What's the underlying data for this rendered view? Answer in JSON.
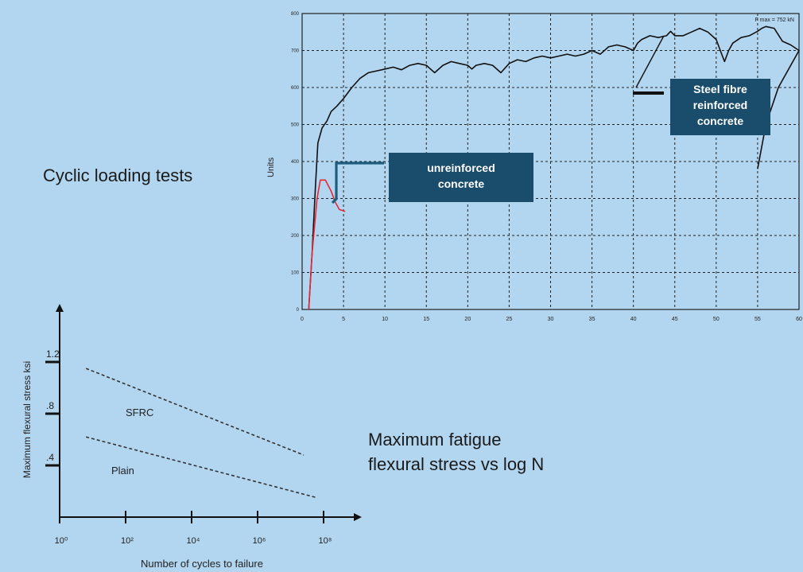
{
  "slide": {
    "title": "Cyclic loading tests",
    "caption_line1": "Maximum fatigue",
    "caption_line2": "flexural stress vs log N"
  },
  "colors": {
    "background": "#b3d6f0",
    "plot_bg": "#b3d6f0",
    "label_box": "#1a4d6b",
    "sfrc_line": "#111111",
    "plain_line": "#e8283a"
  },
  "chart_data": [
    {
      "type": "line",
      "ylabel": "Units",
      "xlabel": "",
      "xlim": [
        0,
        60
      ],
      "ylim": [
        0,
        800
      ],
      "grid": true,
      "x_ticks": [
        0,
        5,
        10,
        15,
        20,
        25,
        30,
        35,
        40,
        45,
        50,
        55,
        60
      ],
      "y_ticks": [
        0,
        100,
        200,
        300,
        400,
        500,
        600,
        700,
        800
      ],
      "annotation": "F max = 752 kN",
      "labels": [
        {
          "text_lines": [
            "Steel fibre",
            "reinforced",
            "concrete"
          ],
          "series": "sfrc"
        },
        {
          "text_lines": [
            "unreinforced",
            "concrete"
          ],
          "series": "plain"
        }
      ],
      "series": [
        {
          "id": "sfrc",
          "color": "#111111",
          "points": [
            [
              0.8,
              0
            ],
            [
              1.2,
              150
            ],
            [
              1.6,
              330
            ],
            [
              1.9,
              450
            ],
            [
              2.4,
              490
            ],
            [
              3.0,
              510
            ],
            [
              3.5,
              535
            ],
            [
              4.2,
              550
            ],
            [
              5.0,
              570
            ],
            [
              6.0,
              600
            ],
            [
              7.0,
              625
            ],
            [
              8.0,
              640
            ],
            [
              9.0,
              645
            ],
            [
              10.0,
              650
            ],
            [
              11.0,
              655
            ],
            [
              12.0,
              648
            ],
            [
              13.0,
              660
            ],
            [
              14.0,
              665
            ],
            [
              15.0,
              660
            ],
            [
              15.5,
              650
            ],
            [
              16.0,
              640
            ],
            [
              17.0,
              660
            ],
            [
              18.0,
              670
            ],
            [
              19.0,
              665
            ],
            [
              20.0,
              660
            ],
            [
              20.5,
              650
            ],
            [
              21.0,
              660
            ],
            [
              22.0,
              665
            ],
            [
              23.0,
              660
            ],
            [
              24.0,
              640
            ],
            [
              25.0,
              665
            ],
            [
              26.0,
              675
            ],
            [
              27.0,
              670
            ],
            [
              28.0,
              680
            ],
            [
              29.0,
              685
            ],
            [
              30.0,
              680
            ],
            [
              31.0,
              685
            ],
            [
              32.0,
              690
            ],
            [
              33.0,
              685
            ],
            [
              34.0,
              690
            ],
            [
              35.0,
              700
            ],
            [
              36.0,
              690
            ],
            [
              37.0,
              710
            ],
            [
              38.0,
              715
            ],
            [
              39.0,
              710
            ],
            [
              40.0,
              700
            ],
            [
              40.5,
              720
            ],
            [
              41.0,
              730
            ],
            [
              42.0,
              740
            ],
            [
              43.0,
              735
            ],
            [
              44.0,
              740
            ],
            [
              44.5,
              752
            ],
            [
              45.0,
              740
            ],
            [
              46.0,
              740
            ],
            [
              47.0,
              750
            ],
            [
              48.0,
              760
            ],
            [
              49.0,
              750
            ],
            [
              50.0,
              730
            ],
            [
              50.5,
              700
            ],
            [
              51.0,
              670
            ],
            [
              51.5,
              700
            ],
            [
              52.0,
              720
            ],
            [
              53.0,
              735
            ],
            [
              54.0,
              740
            ],
            [
              55.0,
              752
            ],
            [
              55.5,
              760
            ],
            [
              56.0,
              765
            ],
            [
              57.0,
              760
            ],
            [
              58.0,
              725
            ],
            [
              59.0,
              715
            ],
            [
              60.0,
              700
            ],
            [
              57.5,
              600
            ],
            [
              56.0,
              500
            ],
            [
              55.0,
              380
            ]
          ]
        },
        {
          "id": "plain",
          "color": "#e8283a",
          "points": [
            [
              0.8,
              0
            ],
            [
              1.2,
              150
            ],
            [
              1.8,
              300
            ],
            [
              2.2,
              350
            ],
            [
              2.8,
              350
            ],
            [
              3.5,
              320
            ],
            [
              4.0,
              290
            ],
            [
              4.5,
              270
            ],
            [
              5.2,
              265
            ]
          ]
        }
      ]
    },
    {
      "type": "line",
      "title": "",
      "ylabel": "Maximum flexural stress ksi",
      "xlabel": "Number of cycles to failure",
      "x_tick_labels": [
        "10⁰",
        "10²",
        "10⁴",
        "10⁶",
        "10⁸"
      ],
      "y_tick_labels": [
        ".4",
        ".8",
        "1.2"
      ],
      "y_tick_values": [
        0.4,
        0.8,
        1.2
      ],
      "series": [
        {
          "name": "SFRC",
          "x_log": [
            0.8,
            7.4
          ],
          "y": [
            1.15,
            0.48
          ]
        },
        {
          "name": "Plain",
          "x_log": [
            0.8,
            7.8
          ],
          "y": [
            0.62,
            0.15
          ]
        }
      ]
    }
  ]
}
